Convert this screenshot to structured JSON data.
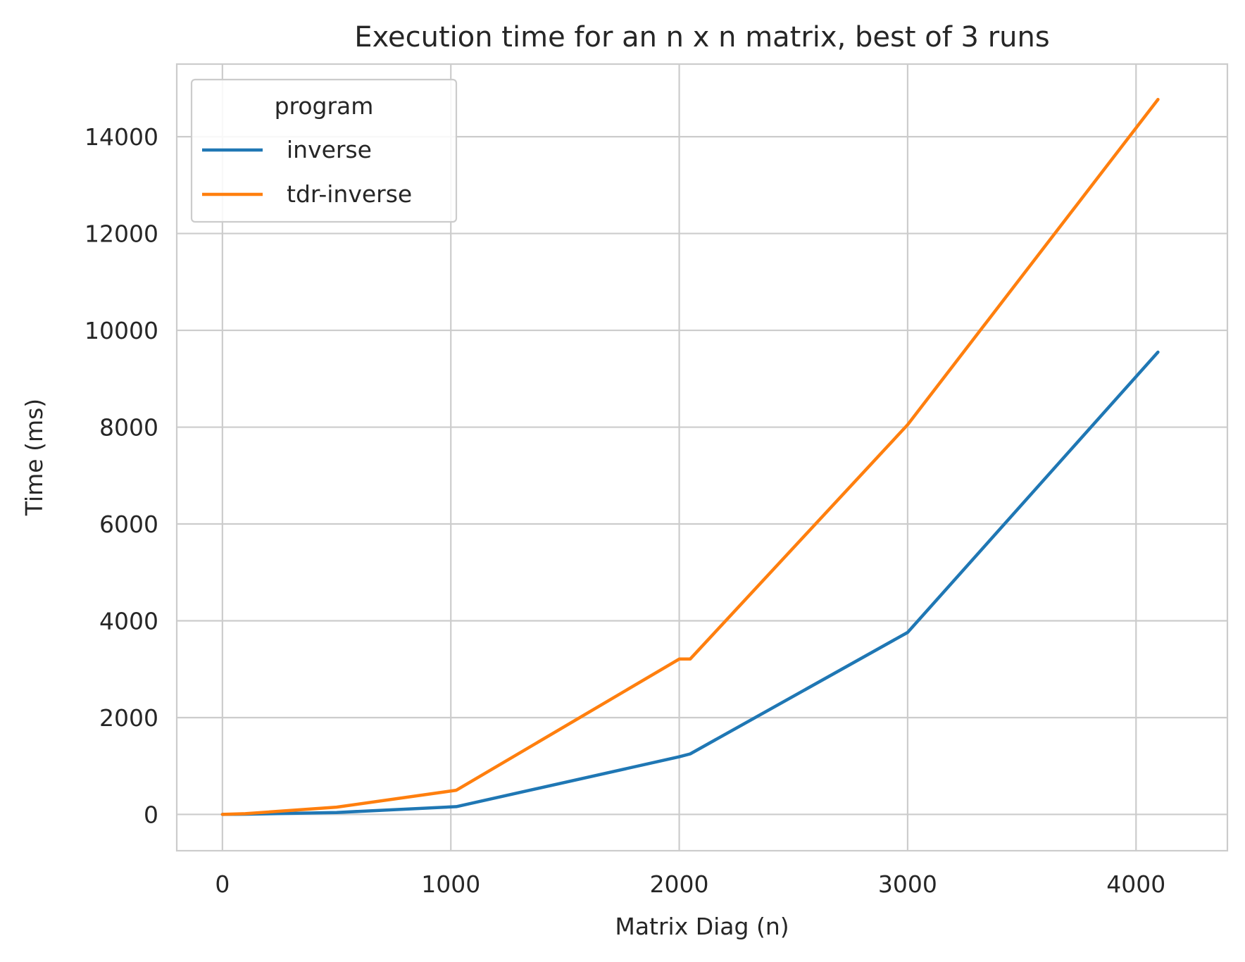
{
  "chart_data": {
    "type": "line",
    "title": "Execution time for an n x n matrix, best of 3 runs",
    "xlabel": "Matrix Diag (n)",
    "ylabel": "Time (ms)",
    "xlim": [
      -200,
      4400
    ],
    "ylim": [
      -750,
      15500
    ],
    "x_ticks": [
      0,
      1000,
      2000,
      3000,
      4000
    ],
    "y_ticks": [
      0,
      2000,
      4000,
      6000,
      8000,
      10000,
      12000,
      14000
    ],
    "x_tick_labels": [
      "0",
      "1000",
      "2000",
      "3000",
      "4000"
    ],
    "y_tick_labels": [
      "0",
      "2000",
      "4000",
      "6000",
      "8000",
      "10000",
      "12000",
      "14000"
    ],
    "grid": true,
    "legend": {
      "title": "program",
      "placement": "top-left"
    },
    "series": [
      {
        "name": "inverse",
        "color": "#1f77b4",
        "x": [
          0,
          100,
          500,
          1024,
          2000,
          2048,
          3000,
          4096
        ],
        "y": [
          0,
          5,
          40,
          160,
          1190,
          1250,
          3760,
          9550
        ]
      },
      {
        "name": "tdr-inverse",
        "color": "#ff7f0e",
        "x": [
          0,
          100,
          500,
          1024,
          2000,
          2048,
          3000,
          4096
        ],
        "y": [
          0,
          15,
          150,
          500,
          3210,
          3210,
          8050,
          14770
        ]
      }
    ]
  }
}
